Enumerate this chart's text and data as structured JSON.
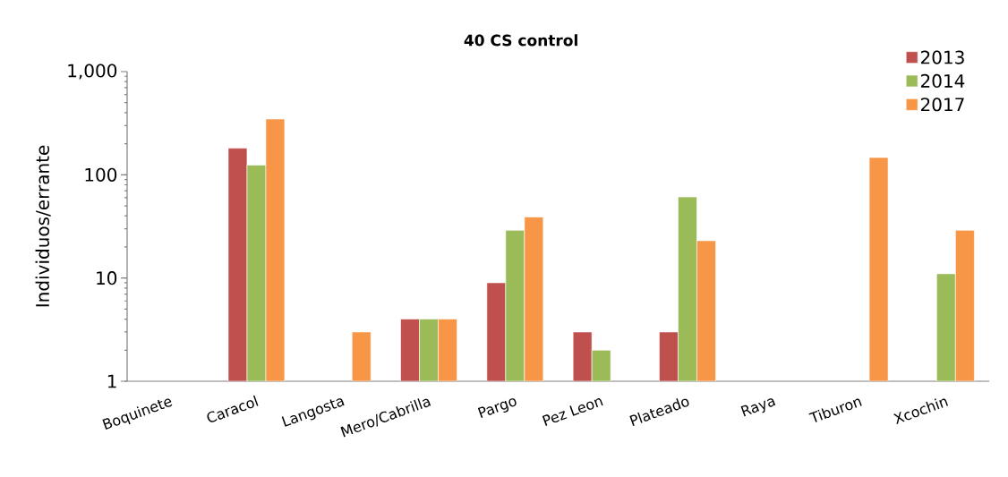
{
  "chart_data": {
    "type": "bar",
    "title": "40 CS control",
    "ylabel": "Individuos/errante",
    "categories": [
      "Boquinete",
      "Caracol",
      "Langosta",
      "Mero/Cabrilla",
      "Pargo",
      "Pez Leon",
      "Plateado",
      "Raya",
      "Tiburon",
      "Xcochin"
    ],
    "series": [
      {
        "name": "2013",
        "color": "#c0504d",
        "values": [
          null,
          181,
          null,
          4,
          9,
          3,
          3,
          null,
          null,
          null
        ]
      },
      {
        "name": "2014",
        "color": "#9bbb59",
        "values": [
          null,
          124,
          null,
          4,
          29,
          2,
          61,
          null,
          null,
          11
        ]
      },
      {
        "name": "2017",
        "color": "#f79646",
        "values": [
          null,
          347,
          3,
          4,
          39,
          null,
          23,
          null,
          147,
          29
        ]
      }
    ],
    "log": true,
    "ylim": [
      1,
      1000
    ],
    "yticks": [
      1,
      10,
      100,
      {
        "value": 1000,
        "label": "1,000"
      }
    ],
    "grid": false,
    "legend": "top right"
  }
}
